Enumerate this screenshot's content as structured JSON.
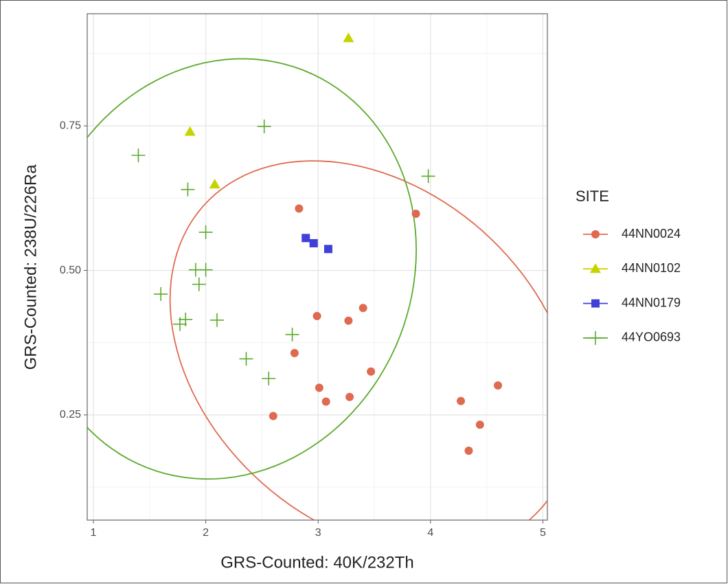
{
  "chart_data": {
    "type": "scatter",
    "x_label": "GRS-Counted: 40K/232Th",
    "y_label": "GRS-Counted: 238U/226Ra",
    "legend_title": "SITE",
    "legend_position": "right",
    "xlim": [
      0.945,
      5.04
    ],
    "ylim": [
      0.068,
      0.944
    ],
    "xticks": [
      1,
      2,
      3,
      4,
      5
    ],
    "yticks": [
      {
        "value": 0.25,
        "label": "0.25"
      },
      {
        "value": 0.5,
        "label": "0.50"
      },
      {
        "value": 0.75,
        "label": "0.75"
      }
    ],
    "xminor": [
      1.5,
      2.5,
      3.5,
      4.5
    ],
    "yminor": [
      0.125,
      0.375,
      0.625,
      0.875
    ],
    "grid": true,
    "series": [
      {
        "name": "44NN0024",
        "color": "#df6a4f",
        "marker": "circle",
        "ellipse": true,
        "x": [
          2.83,
          3.87,
          2.99,
          3.27,
          3.4,
          2.79,
          3.47,
          3.01,
          3.07,
          3.28,
          2.6,
          4.27,
          4.6,
          4.44,
          4.34
        ],
        "values": [
          0.607,
          0.598,
          0.421,
          0.413,
          0.435,
          0.357,
          0.325,
          0.297,
          0.273,
          0.281,
          0.248,
          0.274,
          0.301,
          0.233,
          0.188
        ]
      },
      {
        "name": "44NN0102",
        "color": "#c6d300",
        "marker": "triangle",
        "ellipse": false,
        "x": [
          3.27,
          1.86,
          2.08
        ],
        "values": [
          0.902,
          0.74,
          0.649
        ]
      },
      {
        "name": "44NN0179",
        "color": "#4040d8",
        "marker": "square",
        "ellipse": false,
        "x": [
          2.89,
          2.96,
          3.09
        ],
        "values": [
          0.556,
          0.547,
          0.537
        ]
      },
      {
        "name": "44YO0693",
        "color": "#5aaa2a",
        "marker": "plus",
        "ellipse": true,
        "x": [
          2.52,
          1.4,
          1.84,
          3.98,
          2.0,
          1.91,
          2.0,
          1.94,
          1.6,
          1.82,
          1.77,
          2.1,
          2.77,
          2.36,
          2.56
        ],
        "values": [
          0.749,
          0.699,
          0.64,
          0.663,
          0.566,
          0.501,
          0.501,
          0.476,
          0.459,
          0.415,
          0.407,
          0.414,
          0.389,
          0.347,
          0.313
        ]
      }
    ]
  }
}
